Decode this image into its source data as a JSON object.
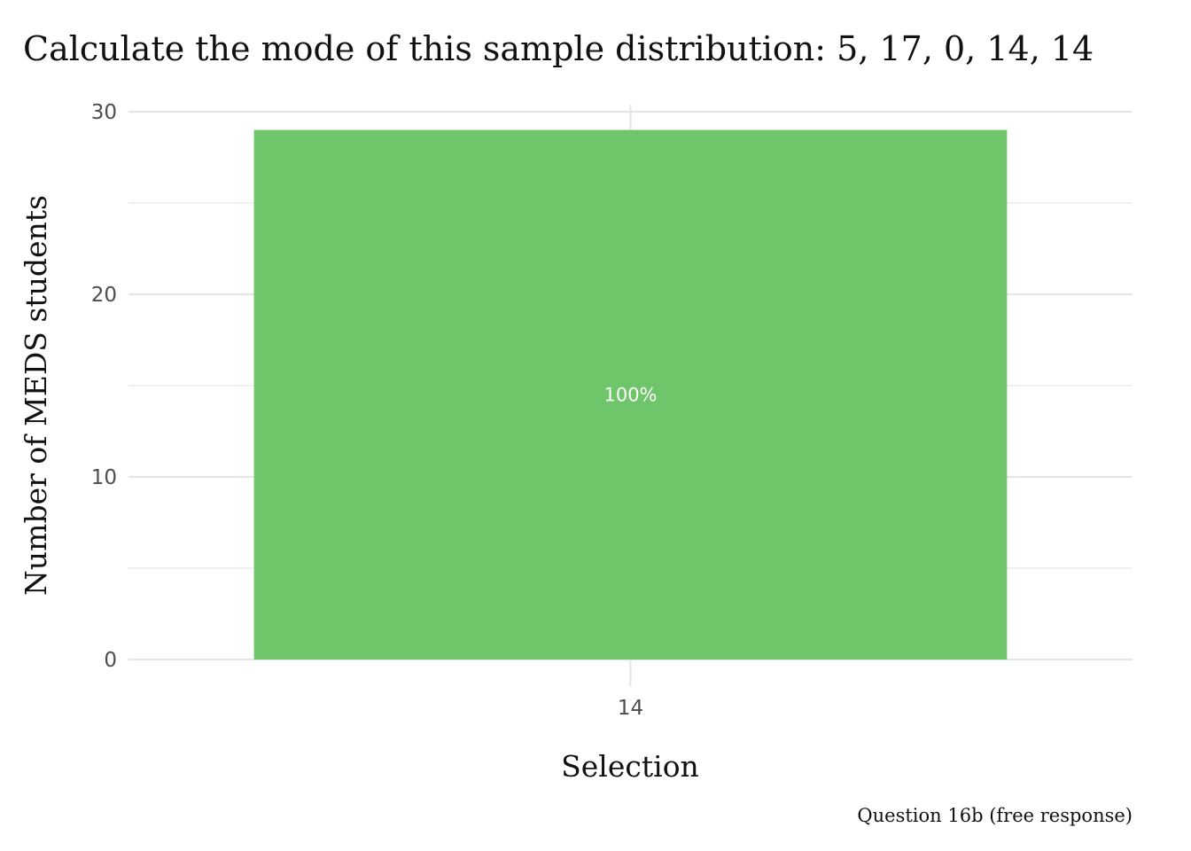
{
  "chart_data": {
    "type": "bar",
    "title": "Calculate the mode of this sample distribution: 5, 17, 0, 14, 14",
    "xlabel": "Selection",
    "ylabel": "Number of MEDS students",
    "caption": "Question 16b (free response)",
    "categories": [
      "14"
    ],
    "values": [
      29
    ],
    "data_labels": [
      "100%"
    ],
    "ylim": [
      0,
      30
    ],
    "yticks": [
      0,
      10,
      20,
      30
    ],
    "grid": true,
    "legend": "none",
    "colors": {
      "bar": "#6fc66a"
    }
  }
}
